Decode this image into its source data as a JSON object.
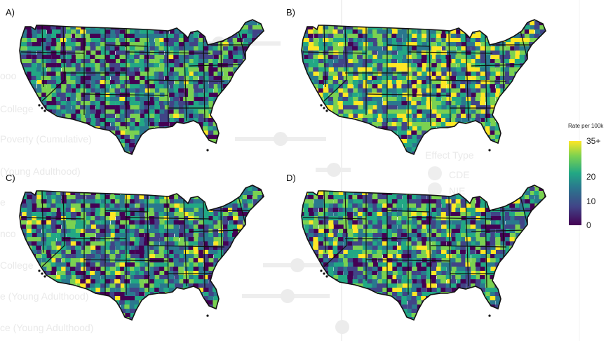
{
  "panels": [
    {
      "label": "A)",
      "seed": 11,
      "bias": 0.0
    },
    {
      "label": "B)",
      "seed": 23,
      "bias": 0.25
    },
    {
      "label": "C)",
      "seed": 37,
      "bias": 0.05
    },
    {
      "label": "D)",
      "seed": 51,
      "bias": 0.1
    }
  ],
  "legend": {
    "title": "Rate per 100k",
    "labels": [
      {
        "text": "35+",
        "value": 35
      },
      {
        "text": "20",
        "value": 20
      },
      {
        "text": "10",
        "value": 10
      },
      {
        "text": "0",
        "value": 0
      }
    ],
    "max_value": 35
  },
  "ghost": {
    "labels": [
      "ooo",
      "College",
      "Poverty (Cumulative)",
      "(Young Adulthood)",
      "e",
      "nco",
      "College",
      "e (Young Adulthood)",
      "ce (Young Adulthood)"
    ],
    "effect_type_title": "Effect Type",
    "effect_items": [
      "CDE",
      "NIE"
    ]
  },
  "colors": {
    "viridis": [
      "#440154",
      "#414487",
      "#2a788e",
      "#22a884",
      "#7ad151",
      "#fde725"
    ],
    "border": "#111111"
  }
}
